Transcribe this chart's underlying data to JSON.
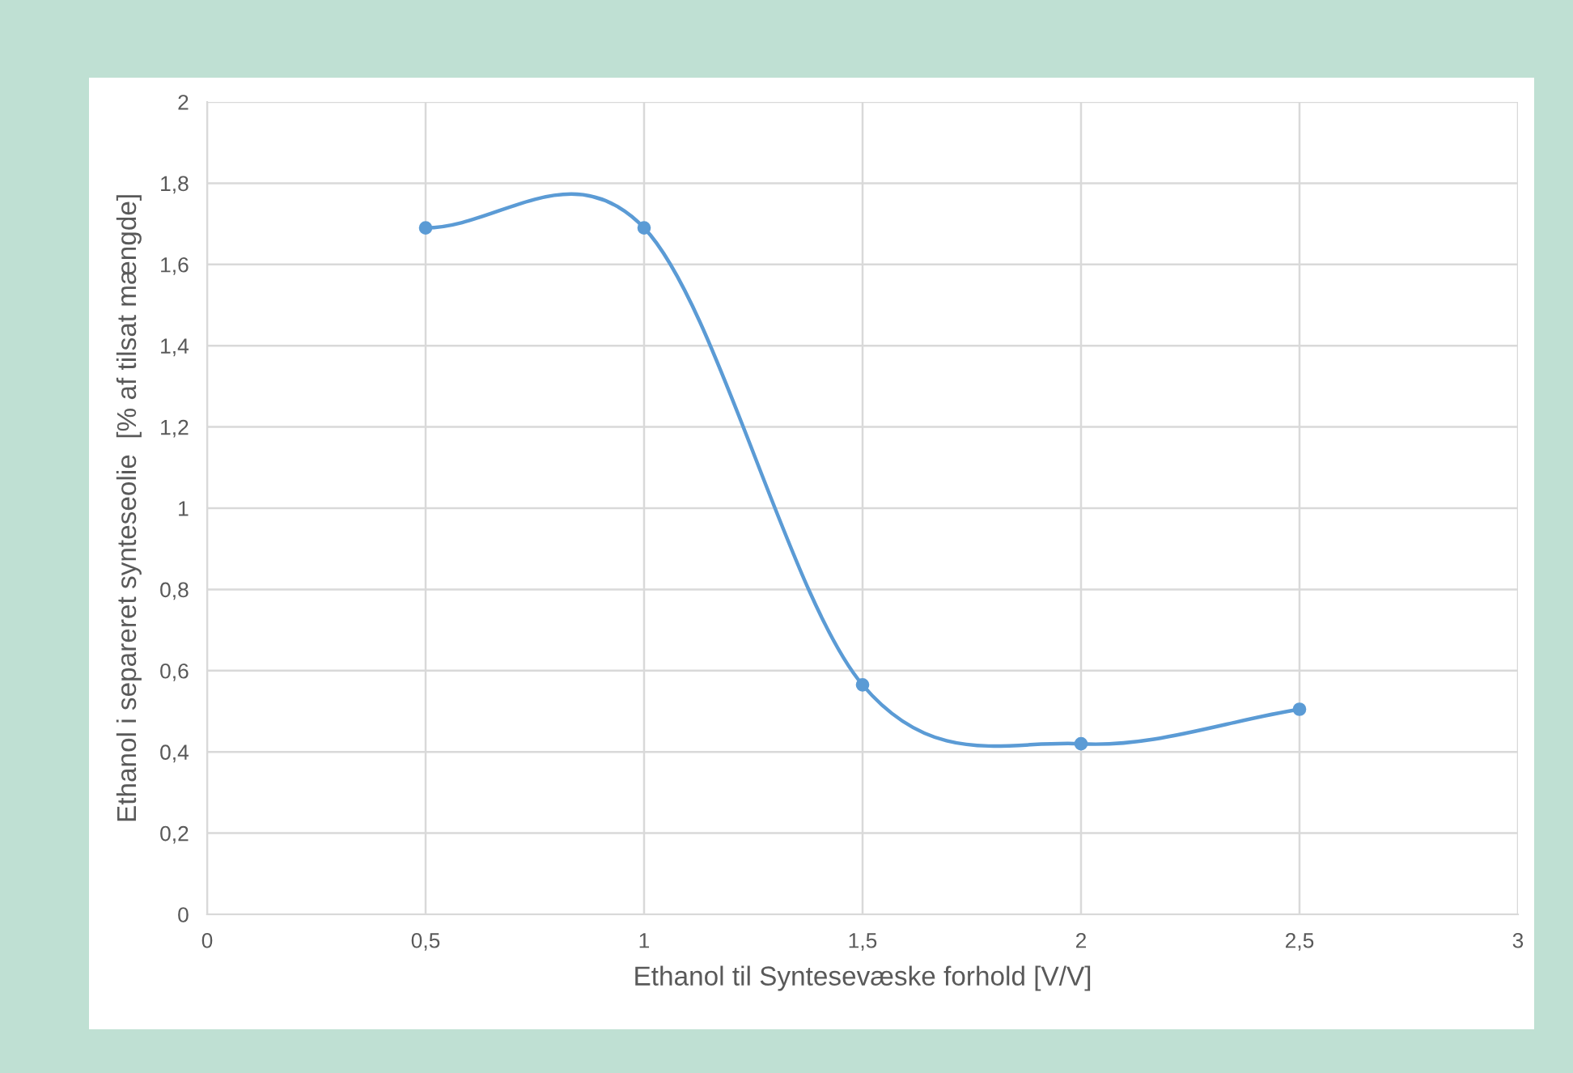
{
  "chart_data": {
    "type": "line",
    "xlabel": "Ethanol til Syntesevæske forhold [V/V]",
    "ylabel": "Ethanol i separeret synteseolie  [% af tilsat mængde]",
    "x": [
      0.5,
      1,
      1.5,
      2,
      2.5
    ],
    "series": [
      {
        "color": "#5b9bd5",
        "values": [
          1.69,
          1.69,
          0.565,
          0.42,
          0.505
        ]
      }
    ],
    "xlim": [
      0,
      3
    ],
    "ylim": [
      0,
      2
    ],
    "xticks": [
      0,
      {
        "value": 0.5,
        "label": "0,5"
      },
      1,
      {
        "value": 1.5,
        "label": "1,5"
      },
      2,
      {
        "value": 2.5,
        "label": "2,5"
      },
      3
    ],
    "yticks": [
      0,
      {
        "value": 0.2,
        "label": "0,2"
      },
      {
        "value": 0.4,
        "label": "0,4"
      },
      {
        "value": 0.6,
        "label": "0,6"
      },
      {
        "value": 0.8,
        "label": "0,8"
      },
      1,
      {
        "value": 1.2,
        "label": "1,2"
      },
      {
        "value": 1.4,
        "label": "1,4"
      },
      {
        "value": 1.6,
        "label": "1,6"
      },
      {
        "value": 1.8,
        "label": "1,8"
      },
      2
    ],
    "grid": true,
    "marker": "circle",
    "line_style": "solid"
  }
}
